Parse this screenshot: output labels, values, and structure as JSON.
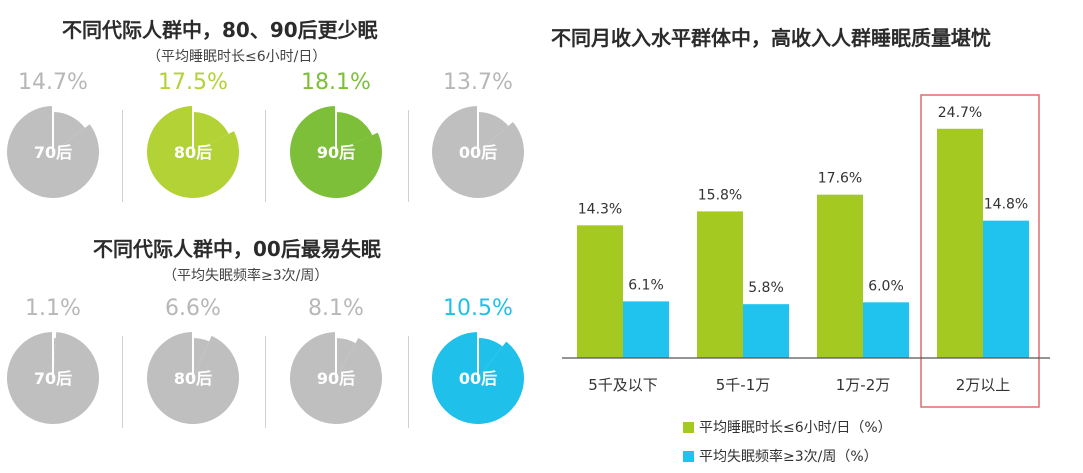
{
  "colors": {
    "gray": "#bfbfbf",
    "green_light": "#b3d235",
    "green": "#7dbf39",
    "blue": "#1fc0ea",
    "green_bar": "#a4c920",
    "blue_bar": "#1fc3ee",
    "highlight_box": "#e06c6c",
    "gray_text": "#b7b7b7"
  },
  "left_panel": {
    "sleep_section": {
      "title": "不同代际人群中，80、90后更少眠",
      "subtitle": "（平均睡眠时长≤6小时/日）",
      "items": [
        {
          "label": "70后",
          "value_text": "14.7%",
          "value": 14.7,
          "color_key": "gray"
        },
        {
          "label": "80后",
          "value_text": "17.5%",
          "value": 17.5,
          "color_key": "green_light"
        },
        {
          "label": "90后",
          "value_text": "18.1%",
          "value": 18.1,
          "color_key": "green"
        },
        {
          "label": "00后",
          "value_text": "13.7%",
          "value": 13.7,
          "color_key": "gray"
        }
      ]
    },
    "insomnia_section": {
      "title": "不同代际人群中，00后最易失眠",
      "subtitle": "（平均失眠频率≥3次/周）",
      "items": [
        {
          "label": "70后",
          "value_text": "1.1%",
          "value": 1.1,
          "color_key": "gray"
        },
        {
          "label": "80后",
          "value_text": "6.6%",
          "value": 6.6,
          "color_key": "gray"
        },
        {
          "label": "90后",
          "value_text": "8.1%",
          "value": 8.1,
          "color_key": "gray"
        },
        {
          "label": "00后",
          "value_text": "10.5%",
          "value": 10.5,
          "color_key": "blue"
        }
      ]
    }
  },
  "chart_data": {
    "type": "bar",
    "title": "不同月收入水平群体中，高收入人群睡眠质量堪忧",
    "categories": [
      "5千及以下",
      "5千-1万",
      "1万-2万",
      "2万以上"
    ],
    "series": [
      {
        "name": "平均睡眠时长≤6小时/日（%）",
        "values": [
          14.3,
          15.8,
          17.6,
          24.7
        ],
        "labels": [
          "14.3%",
          "15.8%",
          "17.6%",
          "24.7%"
        ]
      },
      {
        "name": "平均失眠频率≥3次/周（%）",
        "values": [
          6.1,
          5.8,
          6.0,
          14.8
        ],
        "labels": [
          "6.1%",
          "5.8%",
          "6.0%",
          "14.8%"
        ]
      }
    ],
    "ylim": [
      0,
      25
    ],
    "highlighted_category": "2万以上",
    "legend_position": "bottom"
  }
}
